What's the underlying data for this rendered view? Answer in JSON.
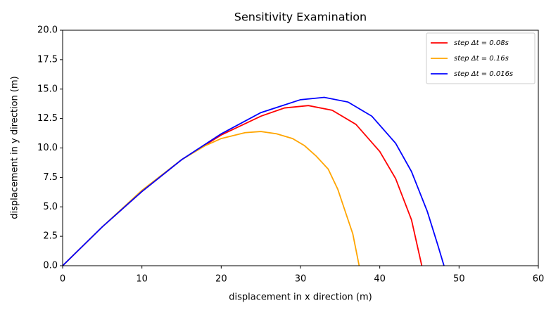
{
  "chart_data": {
    "type": "line",
    "title": "Sensitivity Examination",
    "xlabel": "displacement in x direction (m)",
    "ylabel": "displacement in y direction (m)",
    "xlim": [
      0,
      60
    ],
    "ylim": [
      0,
      20
    ],
    "xticks": [
      0,
      10,
      20,
      30,
      40,
      50,
      60
    ],
    "yticks": [
      {
        "value": 0,
        "label": "0.0"
      },
      2.5,
      {
        "value": 5,
        "label": "5.0"
      },
      7.5,
      {
        "value": 10,
        "label": "10.0"
      },
      12.5,
      {
        "value": 15,
        "label": "15.0"
      },
      17.5,
      {
        "value": 20,
        "label": "20.0"
      }
    ],
    "grid": false,
    "legend": "upper right",
    "series": [
      {
        "name": "step   Δt = 0.08s",
        "color": "#ff0000",
        "x": [
          0,
          5,
          10,
          15,
          20,
          25,
          28,
          31,
          34,
          37,
          40,
          42,
          44,
          45.3
        ],
        "values": [
          0,
          3.3,
          6.3,
          9.0,
          11.1,
          12.7,
          13.4,
          13.6,
          13.2,
          12.0,
          9.7,
          7.4,
          3.9,
          0
        ]
      },
      {
        "name": "step   Δt = 0.16s",
        "color": "#ffa500",
        "x": [
          0,
          5,
          10,
          15,
          18,
          20,
          23,
          25,
          27,
          29,
          30.5,
          32,
          33.5,
          34.7,
          35.7,
          36.6,
          37.4
        ],
        "values": [
          0,
          3.3,
          6.4,
          9.0,
          10.2,
          10.8,
          11.3,
          11.4,
          11.2,
          10.8,
          10.2,
          9.3,
          8.2,
          6.5,
          4.5,
          2.7,
          0
        ]
      },
      {
        "name": "step   Δt = 0.016s",
        "color": "#0000ff",
        "x": [
          0,
          5,
          10,
          15,
          20,
          25,
          30,
          33,
          36,
          39,
          42,
          44,
          46,
          47.3,
          48.1
        ],
        "values": [
          0,
          3.3,
          6.3,
          9.0,
          11.2,
          13.0,
          14.1,
          14.3,
          13.9,
          12.7,
          10.4,
          8.0,
          4.6,
          1.8,
          0
        ]
      }
    ]
  }
}
